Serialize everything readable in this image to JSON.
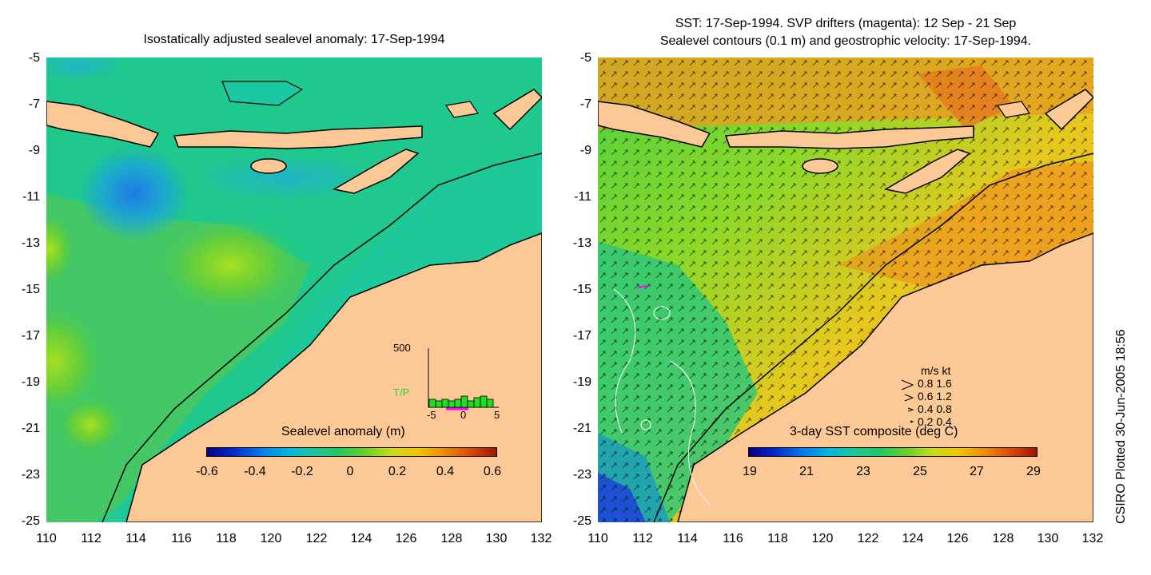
{
  "left_panel": {
    "title": "Isostatically adjusted sealevel anomaly: 17-Sep-1994",
    "colorbar": {
      "title": "Sealevel anomaly (m)",
      "labels": [
        "-0.6",
        "-0.4",
        "-0.2",
        "0",
        "0.2",
        "0.4",
        "0.6"
      ]
    },
    "inset": {
      "ymax_label": "500",
      "series_label": "T/P",
      "x_labels": [
        "-5",
        "0",
        "5"
      ]
    }
  },
  "right_panel": {
    "title_line1": "SST: 17-Sep-1994. SVP drifters (magenta): 12 Sep - 21 Sep",
    "title_line2": "Sealevel contours (0.1 m) and geostrophic velocity: 17-Sep-1994.",
    "colorbar": {
      "title": "3-day SST composite (deg C)",
      "labels": [
        "19",
        "21",
        "23",
        "25",
        "27",
        "29"
      ]
    },
    "velocity_legend": {
      "header": "m/s  kt",
      "rows": [
        "0.8  1.6",
        "0.6  1.2",
        "0.4  0.8",
        "0.2  0.4"
      ]
    }
  },
  "axes": {
    "y_labels": [
      "-5",
      "-7",
      "-9",
      "-11",
      "-13",
      "-15",
      "-17",
      "-19",
      "-21",
      "-23",
      "-25"
    ],
    "x_labels": [
      "110",
      "112",
      "114",
      "116",
      "118",
      "120",
      "122",
      "124",
      "126",
      "128",
      "130",
      "132"
    ]
  },
  "credit": "CSIRO Plotted 30-Jun-2005 18:56",
  "colors": {
    "land": "#fcc896",
    "ocean_sla": "#1fc88c",
    "ocean_sst": "#f0b020",
    "coast": "#000000"
  }
}
